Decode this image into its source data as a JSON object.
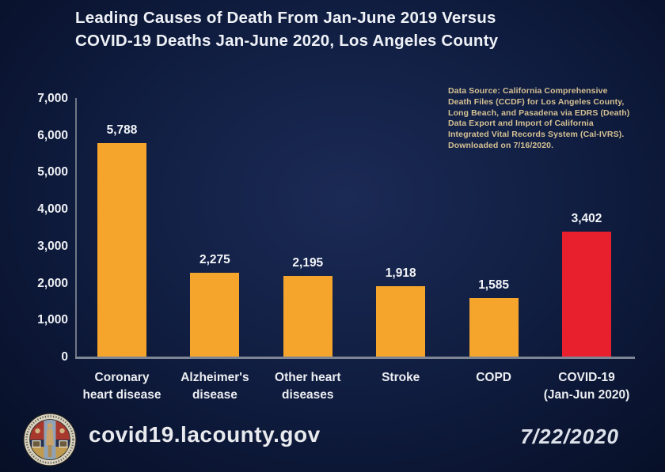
{
  "header": {
    "title_line1": "Leading Causes of Death From Jan-June 2019 Versus",
    "title_line2": "COVID-19 Deaths Jan-June 2020, Los Angeles County"
  },
  "data_source_note": {
    "lines": [
      "Data Source: California Comprehensive",
      "Death Files (CCDF) for Los Angeles County,",
      "Long Beach, and Pasadena via EDRS (Death)",
      "Data Export and Import of California",
      "Integrated Vital Records System (Cal-IVRS).",
      "Downloaded on 7/16/2020."
    ]
  },
  "chart_data": {
    "type": "bar",
    "title": "Leading Causes of Death From Jan-June 2019 Versus COVID-19 Deaths Jan-June 2020, Los Angeles County",
    "categories": [
      "Coronary heart disease",
      "Alzheimer's disease",
      "Other heart diseases",
      "Stroke",
      "COPD",
      "COVID-19 (Jan-Jun 2020)"
    ],
    "category_lines": [
      [
        "Coronary",
        "heart disease"
      ],
      [
        "Alzheimer's",
        "disease"
      ],
      [
        "Other heart",
        "diseases"
      ],
      [
        "Stroke"
      ],
      [
        "COPD"
      ],
      [
        "COVID-19",
        "(Jan-Jun 2020)"
      ]
    ],
    "values": [
      5788,
      2275,
      2195,
      1918,
      1585,
      3402
    ],
    "value_labels": [
      "5,788",
      "2,275",
      "2,195",
      "1,918",
      "1,585",
      "3,402"
    ],
    "bar_colors": [
      "#F5A52C",
      "#F5A52C",
      "#F5A52C",
      "#F5A52C",
      "#F5A52C",
      "#E8202E"
    ],
    "xlabel": "",
    "ylabel": "",
    "ylim": [
      0,
      7000
    ],
    "ytick_labels": [
      "7,000",
      "6,000",
      "5,000",
      "4,000",
      "3,000",
      "2,000",
      "1,000",
      "0"
    ],
    "grid": false,
    "legend": false
  },
  "footer": {
    "url": "covid19.lacounty.gov",
    "date": "7/22/2020"
  },
  "colors": {
    "bar_orange": "#F5A52C",
    "bar_red": "#E8202E",
    "note_text": "#D5C193",
    "axis_line": "#7E8594",
    "title_text": "#EEF1F6",
    "background": "#0E1A3D"
  }
}
